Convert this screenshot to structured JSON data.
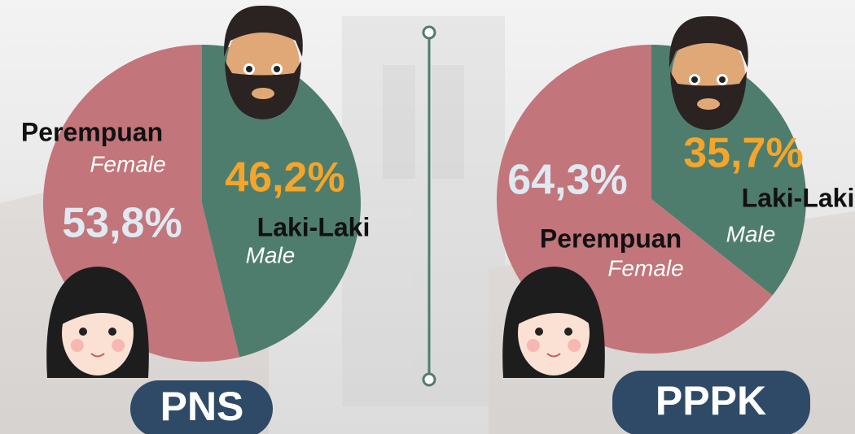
{
  "chart_data": [
    {
      "type": "pie",
      "title": "PNS",
      "categories": [
        "Laki-Laki",
        "Perempuan"
      ],
      "categories_en": [
        "Male",
        "Female"
      ],
      "values": [
        46.2,
        53.8
      ],
      "value_labels": [
        "46,2%",
        "53,8%"
      ],
      "colors": [
        "#4f7d6d",
        "#c2757a"
      ],
      "label_colors": [
        "#f4a52a",
        "#dfe9f1"
      ]
    },
    {
      "type": "pie",
      "title": "PPPK",
      "categories": [
        "Laki-Laki",
        "Perempuan"
      ],
      "categories_en": [
        "Male",
        "Female"
      ],
      "values": [
        35.7,
        64.3
      ],
      "value_labels": [
        "35,7%",
        "64,3%"
      ],
      "colors": [
        "#4f7d6d",
        "#c2757a"
      ],
      "label_colors": [
        "#f4a52a",
        "#dfe9f1"
      ]
    }
  ]
}
